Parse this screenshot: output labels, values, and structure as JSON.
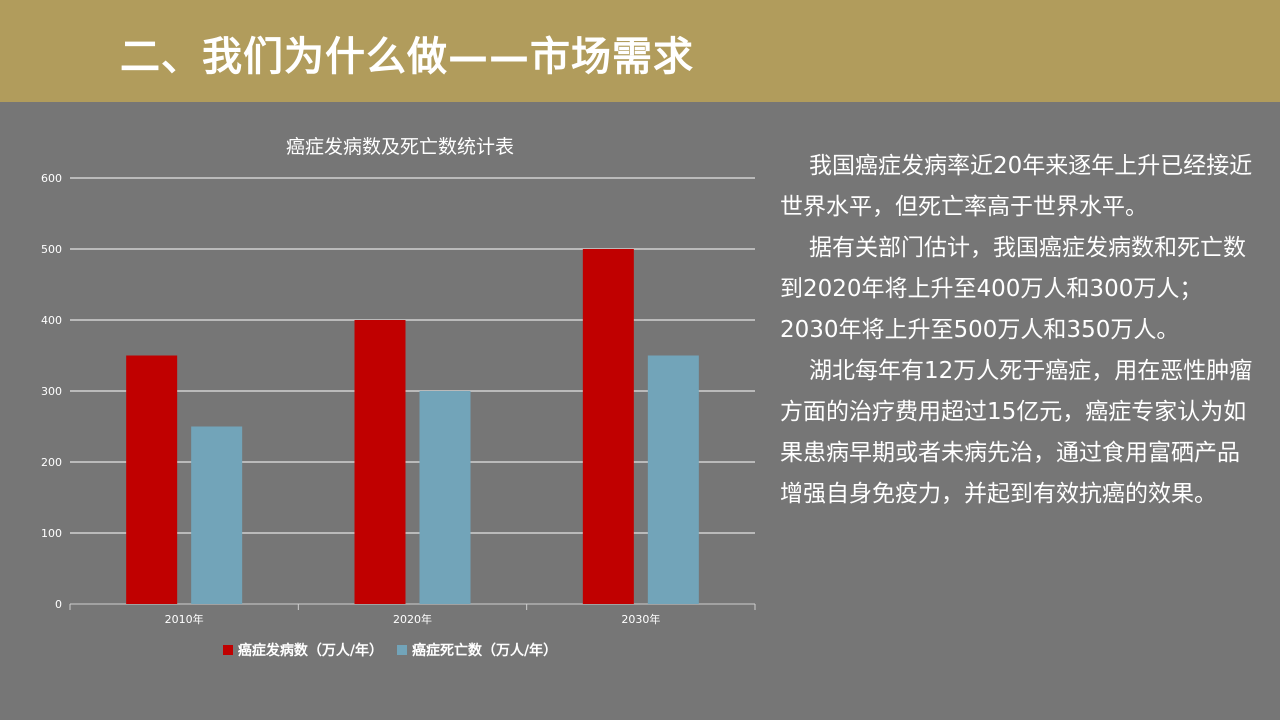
{
  "slide": {
    "title": "二、我们为什么做——市场需求"
  },
  "chart_data": {
    "type": "bar",
    "title": "癌症发病数及死亡数统计表",
    "categories": [
      "2010年",
      "2020年",
      "2030年"
    ],
    "series": [
      {
        "name": "癌症发病数（万人/年）",
        "values": [
          350,
          400,
          500
        ],
        "color": "#c00000"
      },
      {
        "name": "癌症死亡数（万人/年）",
        "values": [
          250,
          300,
          350
        ],
        "color": "#72a4b9"
      }
    ],
    "ylim": [
      0,
      600
    ],
    "yticks": [
      0,
      100,
      200,
      300,
      400,
      500,
      600
    ],
    "grid": true,
    "legend_position": "bottom"
  },
  "body_text": {
    "paragraphs": [
      "我国癌症发病率近20年来逐年上升已经接近世界水平，但死亡率高于世界水平。",
      "据有关部门估计，我国癌症发病数和死亡数到2020年将上升至400万人和300万人；2030年将上升至500万人和350万人。",
      "湖北每年有12万人死于癌症，用在恶性肿瘤方面的治疗费用超过15亿元，癌症专家认为如果患病早期或者未病先治，通过食用富硒产品增强自身免疫力，并起到有效抗癌的效果。"
    ]
  }
}
